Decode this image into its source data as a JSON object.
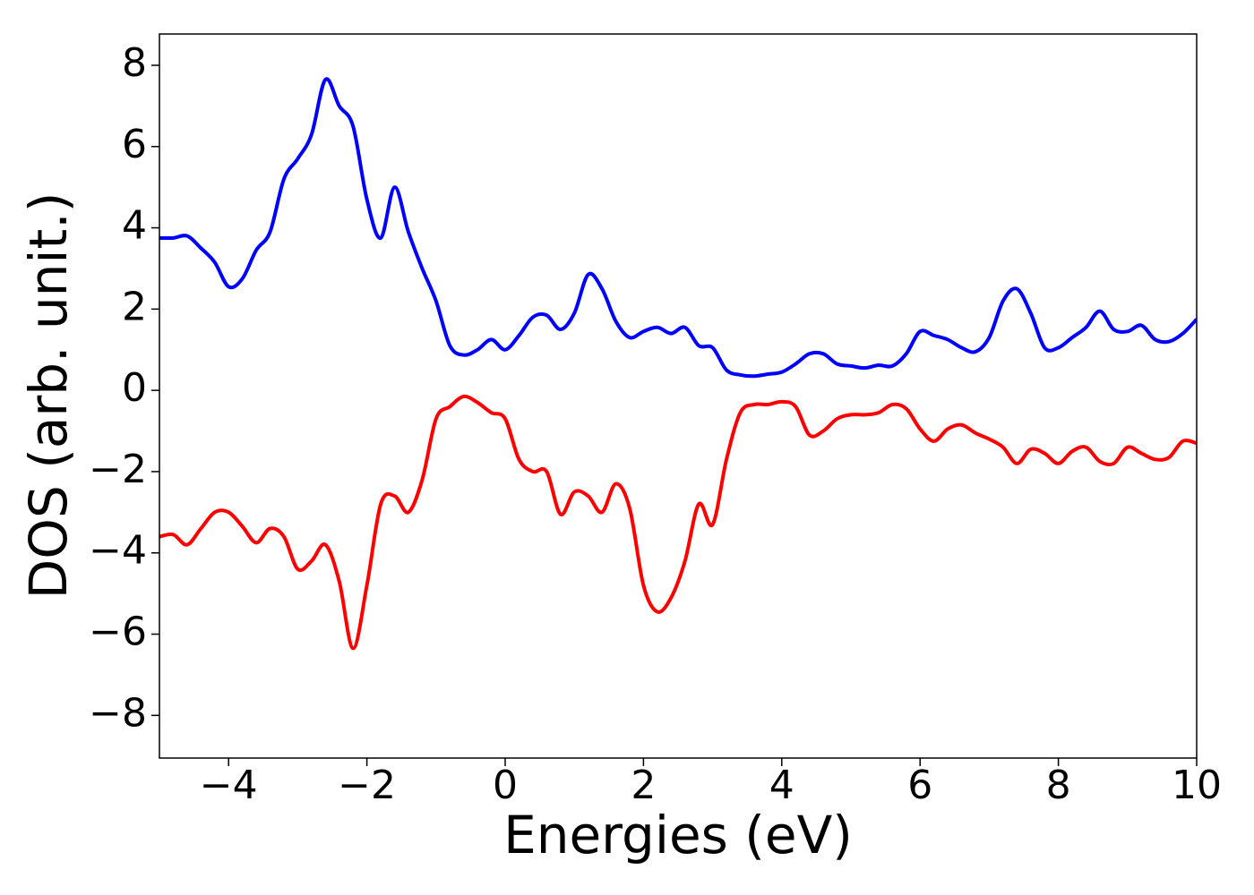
{
  "chart_data": {
    "type": "line",
    "xlabel": "Energies (eV)",
    "ylabel": "DOS (arb. unit.)",
    "xlim": [
      -5,
      10
    ],
    "ylim": [
      -9.05,
      8.77
    ],
    "xticks": [
      {
        "value": -4,
        "label": "−4"
      },
      {
        "value": -2,
        "label": "−2"
      },
      0,
      2,
      4,
      6,
      8,
      10
    ],
    "yticks": [
      {
        "value": -8,
        "label": "−8"
      },
      {
        "value": -6,
        "label": "−6"
      },
      {
        "value": -4,
        "label": "−4"
      },
      {
        "value": -2,
        "label": "−2"
      },
      0,
      2,
      4,
      6,
      8
    ],
    "grid": false,
    "x": [
      -5,
      -4.8,
      -4.6,
      -4.4,
      -4.2,
      -4,
      -3.8,
      -3.6,
      -3.4,
      -3.2,
      -3,
      -2.8,
      -2.6,
      -2.4,
      -2.2,
      -2,
      -1.8,
      -1.6,
      -1.4,
      -1.2,
      -1,
      -0.8,
      -0.6,
      -0.4,
      -0.2,
      0,
      0.2,
      0.4,
      0.6,
      0.8,
      1,
      1.2,
      1.4,
      1.6,
      1.8,
      2,
      2.2,
      2.4,
      2.6,
      2.8,
      3,
      3.2,
      3.4,
      3.6,
      3.8,
      4,
      4.2,
      4.4,
      4.6,
      4.8,
      5,
      5.2,
      5.4,
      5.6,
      5.8,
      6,
      6.2,
      6.4,
      6.6,
      6.8,
      7,
      7.2,
      7.4,
      7.6,
      7.8,
      8,
      8.2,
      8.4,
      8.6,
      8.8,
      9,
      9.2,
      9.4,
      9.6,
      9.8,
      10
    ],
    "series": [
      {
        "color": "#0000ff",
        "values": [
          3.75,
          3.75,
          3.8,
          3.5,
          3.15,
          2.55,
          2.75,
          3.45,
          3.9,
          5.2,
          5.7,
          6.3,
          7.65,
          7.0,
          6.5,
          4.7,
          3.75,
          5.0,
          3.9,
          3.0,
          2.2,
          1.1,
          0.87,
          1.0,
          1.25,
          1.0,
          1.35,
          1.8,
          1.85,
          1.5,
          1.9,
          2.85,
          2.5,
          1.7,
          1.3,
          1.45,
          1.55,
          1.4,
          1.55,
          1.1,
          1.05,
          0.5,
          0.38,
          0.35,
          0.4,
          0.45,
          0.65,
          0.9,
          0.9,
          0.65,
          0.6,
          0.55,
          0.62,
          0.6,
          0.9,
          1.45,
          1.35,
          1.25,
          1.05,
          0.95,
          1.3,
          2.2,
          2.5,
          1.9,
          1.05,
          1.05,
          1.3,
          1.55,
          1.95,
          1.5,
          1.45,
          1.6,
          1.25,
          1.2,
          1.4,
          1.75
        ]
      },
      {
        "color": "#ff0000",
        "values": [
          -3.6,
          -3.55,
          -3.8,
          -3.4,
          -3.0,
          -3.0,
          -3.35,
          -3.75,
          -3.4,
          -3.6,
          -4.4,
          -4.2,
          -3.8,
          -4.7,
          -6.35,
          -4.8,
          -2.8,
          -2.6,
          -3.0,
          -2.2,
          -0.7,
          -0.4,
          -0.15,
          -0.3,
          -0.55,
          -0.7,
          -1.7,
          -2.0,
          -2.0,
          -3.05,
          -2.5,
          -2.6,
          -3.0,
          -2.3,
          -2.9,
          -4.8,
          -5.45,
          -5.1,
          -4.2,
          -2.8,
          -3.3,
          -1.7,
          -0.55,
          -0.35,
          -0.35,
          -0.28,
          -0.4,
          -1.1,
          -1.0,
          -0.7,
          -0.6,
          -0.6,
          -0.55,
          -0.35,
          -0.45,
          -0.95,
          -1.25,
          -0.95,
          -0.85,
          -1.05,
          -1.2,
          -1.4,
          -1.8,
          -1.45,
          -1.55,
          -1.8,
          -1.5,
          -1.4,
          -1.75,
          -1.8,
          -1.4,
          -1.55,
          -1.7,
          -1.65,
          -1.25,
          -1.3
        ]
      }
    ]
  }
}
